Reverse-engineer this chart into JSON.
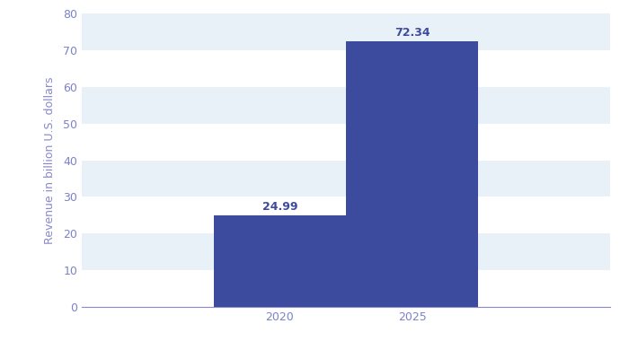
{
  "categories": [
    "2020",
    "2025"
  ],
  "values": [
    24.99,
    72.34
  ],
  "bar_color": "#3d4b9e",
  "label_color": "#3d4b9e",
  "axis_color": "#8888cc",
  "tick_color": "#7b82c9",
  "ylabel": "Revenue in billion U.S. dollars",
  "ylim": [
    0,
    80
  ],
  "yticks": [
    0,
    10,
    20,
    30,
    40,
    50,
    60,
    70,
    80
  ],
  "bg_color": "#ffffff",
  "stripe_colors": [
    "#ffffff",
    "#e8f0f8"
  ],
  "bar_width": 0.5,
  "label_fontsize": 9,
  "tick_fontsize": 9,
  "ylabel_fontsize": 9,
  "x_positions": [
    0.25,
    0.75
  ]
}
